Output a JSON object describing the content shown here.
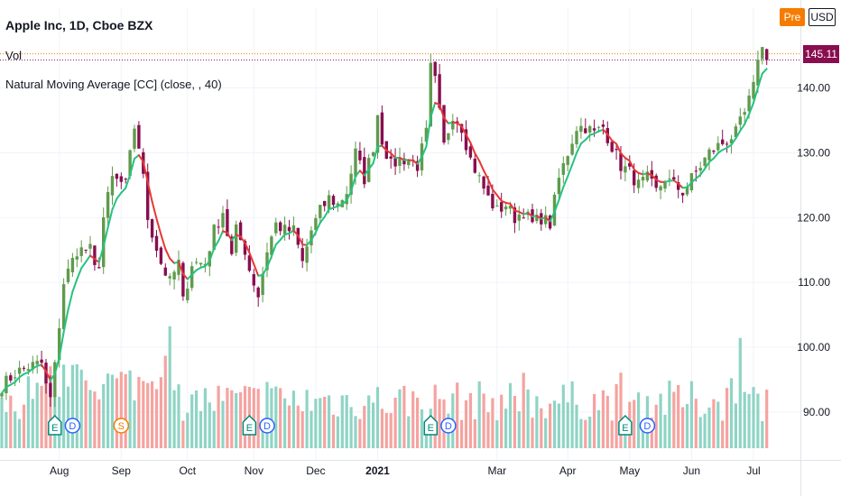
{
  "header": {
    "title": "Apple Inc, 1D, Cboe BZX",
    "pre_label": "Pre",
    "currency": "USD"
  },
  "legend": {
    "volume": "Vol",
    "indicator": "Natural Moving Average [CC] (close, , 40)"
  },
  "last_price": "145.11",
  "colors": {
    "up": "#5f9b4c",
    "down": "#880e4f",
    "ma_up": "#26c281",
    "ma_down": "#e53935",
    "vol_up": "#8fd4c5",
    "vol_down": "#f5a3a0"
  },
  "chart_data": {
    "type": "candlestick",
    "x_tick_labels": [
      "Aug",
      "Sep",
      "Oct",
      "Nov",
      "Dec",
      "2021",
      "Mar",
      "Apr",
      "May",
      "Jun",
      "Jul"
    ],
    "y_tick_labels": [
      "90.00",
      "100.00",
      "110.00",
      "120.00",
      "130.00",
      "140.00"
    ],
    "ylim": [
      84,
      148
    ],
    "close_path": [
      [
        0,
        94
      ],
      [
        3,
        96
      ],
      [
        6,
        97
      ],
      [
        9,
        97.5
      ],
      [
        10,
        94
      ],
      [
        11,
        92
      ],
      [
        12,
        97
      ],
      [
        14,
        110
      ],
      [
        17,
        115
      ],
      [
        20,
        115
      ],
      [
        21,
        112
      ],
      [
        22,
        113
      ],
      [
        23,
        120
      ],
      [
        25,
        126
      ],
      [
        28,
        125
      ],
      [
        30,
        134
      ],
      [
        31,
        131
      ],
      [
        32,
        126
      ],
      [
        33,
        120
      ],
      [
        36,
        113
      ],
      [
        38,
        110
      ],
      [
        40,
        113
      ],
      [
        41,
        107
      ],
      [
        43,
        113
      ],
      [
        46,
        113
      ],
      [
        48,
        118
      ],
      [
        50,
        121
      ],
      [
        52,
        114
      ],
      [
        53,
        118
      ],
      [
        55,
        115
      ],
      [
        56,
        112
      ],
      [
        58,
        108
      ],
      [
        60,
        115
      ],
      [
        62,
        119
      ],
      [
        64,
        118
      ],
      [
        66,
        118
      ],
      [
        68,
        113
      ],
      [
        70,
        118
      ],
      [
        72,
        121
      ],
      [
        74,
        123
      ],
      [
        76,
        122
      ],
      [
        78,
        124
      ],
      [
        80,
        130
      ],
      [
        81,
        128
      ],
      [
        82,
        126
      ],
      [
        84,
        131
      ],
      [
        85,
        136
      ],
      [
        86,
        132
      ],
      [
        88,
        128
      ],
      [
        90,
        129
      ],
      [
        92,
        129
      ],
      [
        94,
        128
      ],
      [
        96,
        133
      ],
      [
        97,
        143
      ],
      [
        98,
        141
      ],
      [
        99,
        136
      ],
      [
        100,
        131
      ],
      [
        102,
        136
      ],
      [
        104,
        134
      ],
      [
        106,
        129
      ],
      [
        108,
        126
      ],
      [
        110,
        123
      ],
      [
        112,
        121
      ],
      [
        114,
        122
      ],
      [
        116,
        120
      ],
      [
        118,
        121
      ],
      [
        120,
        119
      ],
      [
        122,
        120
      ],
      [
        124,
        119
      ],
      [
        126,
        126
      ],
      [
        128,
        130
      ],
      [
        130,
        134
      ],
      [
        132,
        134
      ],
      [
        134,
        133
      ],
      [
        136,
        134
      ],
      [
        138,
        131
      ],
      [
        140,
        128
      ],
      [
        142,
        127
      ],
      [
        144,
        125
      ],
      [
        146,
        126
      ],
      [
        148,
        124
      ],
      [
        150,
        126
      ],
      [
        152,
        125
      ],
      [
        154,
        124
      ],
      [
        156,
        126
      ],
      [
        158,
        128
      ],
      [
        160,
        130
      ],
      [
        162,
        131
      ],
      [
        164,
        132
      ],
      [
        166,
        133
      ],
      [
        168,
        136
      ],
      [
        170,
        140
      ],
      [
        171,
        145
      ],
      [
        172,
        146
      ],
      [
        173,
        145.1
      ]
    ],
    "volume_range": [
      0.8,
      3.2
    ],
    "events": [
      {
        "label": "E",
        "i": 12
      },
      {
        "label": "D",
        "i": 16
      },
      {
        "label": "S",
        "i": 27
      },
      {
        "label": "E",
        "i": 56
      },
      {
        "label": "D",
        "i": 60
      },
      {
        "label": "E",
        "i": 97
      },
      {
        "label": "D",
        "i": 101
      },
      {
        "label": "E",
        "i": 141
      },
      {
        "label": "D",
        "i": 146
      }
    ]
  }
}
